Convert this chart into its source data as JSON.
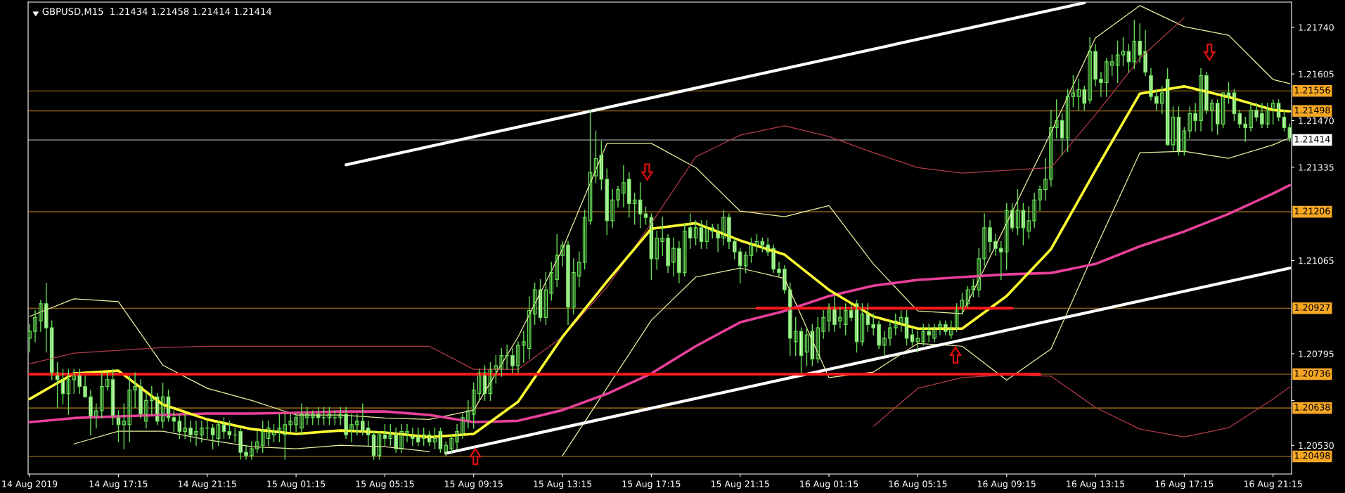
{
  "chart_data": {
    "type": "candlestick",
    "title": "GBPUSD,M15  1.21434 1.21458 1.21414 1.21414",
    "x": [
      "2019-08-14T13:15",
      "2019-08-14T13:30",
      "2019-08-14T13:45",
      "2019-08-14T14:00",
      "2019-08-14T14:15",
      "2019-08-14T14:30",
      "2019-08-14T14:45",
      "2019-08-14T15:00",
      "2019-08-14T15:15",
      "2019-08-14T15:30",
      "2019-08-14T15:45",
      "2019-08-14T16:00",
      "2019-08-14T16:15",
      "2019-08-14T16:30",
      "2019-08-14T16:45",
      "2019-08-14T17:00",
      "2019-08-14T17:15",
      "2019-08-14T17:30",
      "2019-08-14T17:45",
      "2019-08-14T18:00",
      "2019-08-14T18:15",
      "2019-08-14T18:30",
      "2019-08-14T18:45",
      "2019-08-14T19:00",
      "2019-08-14T19:15",
      "2019-08-14T19:30",
      "2019-08-14T19:45",
      "2019-08-14T20:00",
      "2019-08-14T20:15",
      "2019-08-14T20:30",
      "2019-08-14T20:45",
      "2019-08-14T21:00",
      "2019-08-14T21:15",
      "2019-08-14T21:30",
      "2019-08-14T21:45",
      "2019-08-14T22:00",
      "2019-08-14T22:15",
      "2019-08-14T22:30",
      "2019-08-14T22:45",
      "2019-08-14T23:00",
      "2019-08-14T23:15",
      "2019-08-14T23:30",
      "2019-08-14T23:45",
      "2019-08-15T00:00",
      "2019-08-15T00:15",
      "2019-08-15T00:30",
      "2019-08-15T00:45",
      "2019-08-15T01:00",
      "2019-08-15T01:15",
      "2019-08-15T01:30",
      "2019-08-15T01:45",
      "2019-08-15T02:00",
      "2019-08-15T02:15",
      "2019-08-15T02:30",
      "2019-08-15T02:45",
      "2019-08-15T03:00",
      "2019-08-15T03:15",
      "2019-08-15T03:30",
      "2019-08-15T03:45",
      "2019-08-15T04:00",
      "2019-08-15T04:15",
      "2019-08-15T04:30",
      "2019-08-15T04:45",
      "2019-08-15T05:00",
      "2019-08-15T05:15",
      "2019-08-15T05:30",
      "2019-08-15T05:45",
      "2019-08-15T06:00",
      "2019-08-15T06:15",
      "2019-08-15T06:30",
      "2019-08-15T06:45",
      "2019-08-15T07:00",
      "2019-08-15T07:15",
      "2019-08-15T07:30",
      "2019-08-15T07:45",
      "2019-08-15T08:00",
      "2019-08-15T08:15",
      "2019-08-15T08:30",
      "2019-08-15T08:45",
      "2019-08-15T09:00",
      "2019-08-15T09:15",
      "2019-08-15T09:30",
      "2019-08-15T09:45",
      "2019-08-15T10:00",
      "2019-08-15T10:15",
      "2019-08-15T10:30",
      "2019-08-15T10:45",
      "2019-08-15T11:00",
      "2019-08-15T11:15",
      "2019-08-15T11:30",
      "2019-08-15T11:45",
      "2019-08-15T12:00",
      "2019-08-15T12:15",
      "2019-08-15T12:30",
      "2019-08-15T12:45",
      "2019-08-15T13:00",
      "2019-08-15T13:15",
      "2019-08-15T13:30",
      "2019-08-15T13:45",
      "2019-08-15T14:00",
      "2019-08-15T14:15",
      "2019-08-15T14:30",
      "2019-08-15T14:45",
      "2019-08-15T15:00",
      "2019-08-15T15:15",
      "2019-08-15T15:30",
      "2019-08-15T15:45",
      "2019-08-15T16:00",
      "2019-08-15T16:15",
      "2019-08-15T16:30",
      "2019-08-15T16:45",
      "2019-08-15T17:00",
      "2019-08-15T17:15",
      "2019-08-15T17:30",
      "2019-08-15T17:45",
      "2019-08-15T18:00",
      "2019-08-15T18:15",
      "2019-08-15T18:30",
      "2019-08-15T18:45",
      "2019-08-15T19:00",
      "2019-08-15T19:15",
      "2019-08-15T19:30",
      "2019-08-15T19:45",
      "2019-08-15T20:00",
      "2019-08-15T20:15",
      "2019-08-15T20:30",
      "2019-08-15T20:45",
      "2019-08-15T21:00",
      "2019-08-15T21:15",
      "2019-08-15T21:30",
      "2019-08-15T21:45",
      "2019-08-15T22:00",
      "2019-08-15T22:15",
      "2019-08-15T22:30",
      "2019-08-15T22:45",
      "2019-08-15T23:00",
      "2019-08-15T23:15",
      "2019-08-15T23:30",
      "2019-08-15T23:45",
      "2019-08-16T00:00",
      "2019-08-16T00:15",
      "2019-08-16T00:30",
      "2019-08-16T00:45",
      "2019-08-16T01:00",
      "2019-08-16T01:15",
      "2019-08-16T01:30",
      "2019-08-16T01:45",
      "2019-08-16T02:00",
      "2019-08-16T02:15",
      "2019-08-16T02:30",
      "2019-08-16T02:45",
      "2019-08-16T03:00",
      "2019-08-16T03:15",
      "2019-08-16T03:30",
      "2019-08-16T03:45",
      "2019-08-16T04:00",
      "2019-08-16T04:15",
      "2019-08-16T04:30",
      "2019-08-16T04:45",
      "2019-08-16T05:00",
      "2019-08-16T05:15",
      "2019-08-16T05:30",
      "2019-08-16T05:45",
      "2019-08-16T06:00",
      "2019-08-16T06:15",
      "2019-08-16T06:30",
      "2019-08-16T06:45",
      "2019-08-16T07:00",
      "2019-08-16T07:15",
      "2019-08-16T07:30",
      "2019-08-16T07:45",
      "2019-08-16T08:00",
      "2019-08-16T08:15",
      "2019-08-16T08:30",
      "2019-08-16T08:45",
      "2019-08-16T09:00",
      "2019-08-16T09:15",
      "2019-08-16T09:30",
      "2019-08-16T09:45",
      "2019-08-16T10:00",
      "2019-08-16T10:15",
      "2019-08-16T10:30",
      "2019-08-16T10:45",
      "2019-08-16T11:00",
      "2019-08-16T11:15",
      "2019-08-16T11:30",
      "2019-08-16T11:45",
      "2019-08-16T12:00",
      "2019-08-16T12:15",
      "2019-08-16T12:30",
      "2019-08-16T12:45",
      "2019-08-16T13:00",
      "2019-08-16T13:15",
      "2019-08-16T13:30",
      "2019-08-16T13:45",
      "2019-08-16T14:00",
      "2019-08-16T14:15",
      "2019-08-16T14:30",
      "2019-08-16T14:45",
      "2019-08-16T15:00",
      "2019-08-16T15:15",
      "2019-08-16T15:30",
      "2019-08-16T15:45",
      "2019-08-16T16:00",
      "2019-08-16T16:15",
      "2019-08-16T16:30",
      "2019-08-16T16:45",
      "2019-08-16T17:00",
      "2019-08-16T17:15",
      "2019-08-16T17:30",
      "2019-08-16T17:45",
      "2019-08-16T18:00",
      "2019-08-16T18:15",
      "2019-08-16T18:30",
      "2019-08-16T18:45",
      "2019-08-16T19:00",
      "2019-08-16T19:15",
      "2019-08-16T19:30",
      "2019-08-16T19:45",
      "2019-08-16T20:00",
      "2019-08-16T20:15",
      "2019-08-16T20:30",
      "2019-08-16T20:45",
      "2019-08-16T21:00",
      "2019-08-16T21:15",
      "2019-08-16T21:30",
      "2019-08-16T21:45",
      "2019-08-16T22:00"
    ],
    "ohlc": [
      [
        1.2084,
        1.2088,
        1.208,
        1.2086
      ],
      [
        1.2086,
        1.2092,
        1.2083,
        1.209
      ],
      [
        1.2089,
        1.2095,
        1.2086,
        1.2094
      ],
      [
        1.2094,
        1.21,
        1.208,
        1.2087
      ],
      [
        1.2087,
        1.2089,
        1.2072,
        1.2074
      ],
      [
        1.2074,
        1.2077,
        1.2064,
        1.2072
      ],
      [
        1.2072,
        1.2075,
        1.2065,
        1.2068
      ],
      [
        1.2068,
        1.2075,
        1.2062,
        1.2072
      ],
      [
        1.2072,
        1.2075,
        1.2068,
        1.2074
      ],
      [
        1.2074,
        1.2075,
        1.2068,
        1.207
      ],
      [
        1.207,
        1.2073,
        1.2067,
        1.2067
      ],
      [
        1.2067,
        1.2069,
        1.2056,
        1.2061
      ],
      [
        1.2061,
        1.2065,
        1.2058,
        1.2063
      ],
      [
        1.2063,
        1.2074,
        1.2061,
        1.207
      ],
      [
        1.207,
        1.2074,
        1.2069,
        1.2072
      ],
      [
        1.2072,
        1.2075,
        1.2059,
        1.2061
      ],
      [
        1.2061,
        1.2063,
        1.2054,
        1.2059
      ],
      [
        1.2059,
        1.2065,
        1.2052,
        1.206
      ],
      [
        1.2059,
        1.2073,
        1.2054,
        1.2069
      ],
      [
        1.2069,
        1.2074,
        1.2064,
        1.207
      ],
      [
        1.207,
        1.2072,
        1.2061,
        1.2062
      ],
      [
        1.206,
        1.2068,
        1.2058,
        1.2066
      ],
      [
        1.2066,
        1.207,
        1.2062,
        1.2067
      ],
      [
        1.2067,
        1.2068,
        1.2059,
        1.206
      ],
      [
        1.206,
        1.2071,
        1.2058,
        1.2067
      ],
      [
        1.2067,
        1.2069,
        1.206,
        1.2061
      ],
      [
        1.2061,
        1.2063,
        1.2057,
        1.206
      ],
      [
        1.206,
        1.2062,
        1.2055,
        1.2057
      ],
      [
        1.2057,
        1.2062,
        1.2055,
        1.2058
      ],
      [
        1.2058,
        1.206,
        1.2054,
        1.2056
      ],
      [
        1.2056,
        1.206,
        1.2053,
        1.2057
      ],
      [
        1.2056,
        1.206,
        1.2054,
        1.2058
      ],
      [
        1.2058,
        1.206,
        1.2055,
        1.2058
      ],
      [
        1.2058,
        1.2059,
        1.2052,
        1.2056
      ],
      [
        1.2055,
        1.206,
        1.2053,
        1.2059
      ],
      [
        1.2059,
        1.2061,
        1.2055,
        1.2057
      ],
      [
        1.2057,
        1.206,
        1.2055,
        1.2056
      ],
      [
        1.2056,
        1.2058,
        1.2054,
        1.2056
      ],
      [
        1.2057,
        1.2058,
        1.2049,
        1.2051
      ],
      [
        1.2051,
        1.2053,
        1.2049,
        1.205
      ],
      [
        1.205,
        1.2054,
        1.2049,
        1.2052
      ],
      [
        1.2052,
        1.2057,
        1.2051,
        1.2054
      ],
      [
        1.2053,
        1.206,
        1.2051,
        1.2057
      ],
      [
        1.2055,
        1.206,
        1.2053,
        1.2058
      ],
      [
        1.2056,
        1.2059,
        1.2054,
        1.2057
      ],
      [
        1.2057,
        1.2062,
        1.2054,
        1.2058
      ],
      [
        1.2056,
        1.2062,
        1.2049,
        1.2059
      ],
      [
        1.2059,
        1.2062,
        1.2057,
        1.206
      ],
      [
        1.2059,
        1.2062,
        1.2057,
        1.2061
      ],
      [
        1.2058,
        1.2065,
        1.2056,
        1.2062
      ],
      [
        1.2061,
        1.2064,
        1.2059,
        1.2062
      ],
      [
        1.2061,
        1.2063,
        1.2059,
        1.2062
      ],
      [
        1.2062,
        1.2064,
        1.2059,
        1.2061
      ],
      [
        1.2061,
        1.2064,
        1.2059,
        1.2061
      ],
      [
        1.2061,
        1.2064,
        1.2059,
        1.2062
      ],
      [
        1.2061,
        1.2063,
        1.2059,
        1.2061
      ],
      [
        1.2061,
        1.2064,
        1.2059,
        1.2062
      ],
      [
        1.2062,
        1.2064,
        1.2055,
        1.2056
      ],
      [
        1.2057,
        1.2062,
        1.2054,
        1.2059
      ],
      [
        1.2059,
        1.2062,
        1.2056,
        1.206
      ],
      [
        1.206,
        1.2065,
        1.2056,
        1.2057
      ],
      [
        1.2058,
        1.206,
        1.2053,
        1.2056
      ],
      [
        1.2056,
        1.2057,
        1.2049,
        1.205
      ],
      [
        1.205,
        1.2057,
        1.2049,
        1.2056
      ],
      [
        1.2056,
        1.2059,
        1.2053,
        1.2055
      ],
      [
        1.2055,
        1.2059,
        1.2053,
        1.2056
      ],
      [
        1.2056,
        1.2058,
        1.2051,
        1.2052
      ],
      [
        1.2052,
        1.2059,
        1.2051,
        1.2057
      ],
      [
        1.2056,
        1.2059,
        1.2054,
        1.2057
      ],
      [
        1.2056,
        1.2058,
        1.2053,
        1.2055
      ],
      [
        1.2056,
        1.2058,
        1.2053,
        1.2054
      ],
      [
        1.2055,
        1.2058,
        1.2053,
        1.2056
      ],
      [
        1.2056,
        1.2057,
        1.2053,
        1.2054
      ],
      [
        1.2054,
        1.2058,
        1.2052,
        1.2055
      ],
      [
        1.2057,
        1.2058,
        1.2051,
        1.2052
      ],
      [
        1.2051,
        1.2054,
        1.205,
        1.2053
      ],
      [
        1.2052,
        1.2056,
        1.2051,
        1.2055
      ],
      [
        1.2054,
        1.2059,
        1.2052,
        1.2057
      ],
      [
        1.2056,
        1.2062,
        1.2055,
        1.2061
      ],
      [
        1.206,
        1.2066,
        1.2058,
        1.2063
      ],
      [
        1.2062,
        1.2071,
        1.2058,
        1.2069
      ],
      [
        1.2068,
        1.2075,
        1.2066,
        1.2074
      ],
      [
        1.2074,
        1.2076,
        1.2066,
        1.2068
      ],
      [
        1.2068,
        1.2077,
        1.2066,
        1.2075
      ],
      [
        1.2075,
        1.2079,
        1.2071,
        1.2076
      ],
      [
        1.2075,
        1.2081,
        1.2073,
        1.2079
      ],
      [
        1.2079,
        1.2082,
        1.2075,
        1.2079
      ],
      [
        1.2079,
        1.2081,
        1.2074,
        1.2076
      ],
      [
        1.2076,
        1.2083,
        1.2074,
        1.2082
      ],
      [
        1.2082,
        1.2086,
        1.2077,
        1.2083
      ],
      [
        1.2081,
        1.2096,
        1.2078,
        1.2092
      ],
      [
        1.2091,
        1.21,
        1.2088,
        1.2098
      ],
      [
        1.2098,
        1.2101,
        1.2089,
        1.209
      ],
      [
        1.209,
        1.2103,
        1.2088,
        1.2098
      ],
      [
        1.2097,
        1.2106,
        1.2095,
        1.2103
      ],
      [
        1.2101,
        1.2114,
        1.2099,
        1.2108
      ],
      [
        1.2108,
        1.2112,
        1.2105,
        1.2111
      ],
      [
        1.2111,
        1.2112,
        1.2088,
        1.2093
      ],
      [
        1.2093,
        1.2107,
        1.2091,
        1.2103
      ],
      [
        1.2102,
        1.2109,
        1.2099,
        1.2106
      ],
      [
        1.2106,
        1.2121,
        1.2104,
        1.2119
      ],
      [
        1.2118,
        1.215,
        1.2117,
        1.2132
      ],
      [
        1.2131,
        1.2144,
        1.2129,
        1.2136
      ],
      [
        1.2137,
        1.2141,
        1.2127,
        1.213
      ],
      [
        1.213,
        1.2133,
        1.2114,
        1.2118
      ],
      [
        1.2118,
        1.2127,
        1.2116,
        1.2124
      ],
      [
        1.2124,
        1.2128,
        1.2122,
        1.2127
      ],
      [
        1.2126,
        1.2134,
        1.2122,
        1.2129
      ],
      [
        1.213,
        1.2132,
        1.2119,
        1.2123
      ],
      [
        1.2123,
        1.2126,
        1.2117,
        1.2124
      ],
      [
        1.2124,
        1.2129,
        1.2116,
        1.212
      ],
      [
        1.212,
        1.2122,
        1.2117,
        1.2119
      ],
      [
        1.2119,
        1.212,
        1.2101,
        1.2107
      ],
      [
        1.2107,
        1.2115,
        1.2104,
        1.2113
      ],
      [
        1.2112,
        1.2119,
        1.2108,
        1.2113
      ],
      [
        1.2113,
        1.2114,
        1.2103,
        1.2105
      ],
      [
        1.2106,
        1.2113,
        1.2102,
        1.211
      ],
      [
        1.211,
        1.2112,
        1.21,
        1.2103
      ],
      [
        1.2103,
        1.2117,
        1.2102,
        1.2115
      ],
      [
        1.2116,
        1.212,
        1.211,
        1.2113
      ],
      [
        1.2113,
        1.2118,
        1.2111,
        1.2116
      ],
      [
        1.2116,
        1.2118,
        1.211,
        1.2112
      ],
      [
        1.2112,
        1.2118,
        1.211,
        1.2116
      ],
      [
        1.2116,
        1.2117,
        1.2113,
        1.2115
      ],
      [
        1.2115,
        1.2117,
        1.2109,
        1.2113
      ],
      [
        1.2113,
        1.2121,
        1.2111,
        1.2119
      ],
      [
        1.2119,
        1.212,
        1.211,
        1.2112
      ],
      [
        1.2112,
        1.2113,
        1.2107,
        1.2109
      ],
      [
        1.2109,
        1.211,
        1.21,
        1.2105
      ],
      [
        1.2105,
        1.2109,
        1.2103,
        1.2108
      ],
      [
        1.2108,
        1.2113,
        1.2106,
        1.2111
      ],
      [
        1.2111,
        1.2114,
        1.2109,
        1.2112
      ],
      [
        1.2112,
        1.2113,
        1.2109,
        1.2111
      ],
      [
        1.2111,
        1.2113,
        1.2108,
        1.2109
      ],
      [
        1.211,
        1.2111,
        1.2103,
        1.2104
      ],
      [
        1.2104,
        1.2106,
        1.2102,
        1.2103
      ],
      [
        1.2104,
        1.2105,
        1.2097,
        1.2098
      ],
      [
        1.2098,
        1.21,
        1.2079,
        1.2084
      ],
      [
        1.2083,
        1.209,
        1.2079,
        1.2086
      ],
      [
        1.2086,
        1.2087,
        1.2074,
        1.2079
      ],
      [
        1.208,
        1.2087,
        1.2076,
        1.2085
      ],
      [
        1.2086,
        1.2088,
        1.2076,
        1.2078
      ],
      [
        1.2078,
        1.209,
        1.2077,
        1.2087
      ],
      [
        1.2086,
        1.2092,
        1.2084,
        1.209
      ],
      [
        1.2089,
        1.2094,
        1.2086,
        1.2093
      ],
      [
        1.2093,
        1.2096,
        1.2086,
        1.2088
      ],
      [
        1.2089,
        1.2093,
        1.2087,
        1.209
      ],
      [
        1.2088,
        1.2094,
        1.2085,
        1.2092
      ],
      [
        1.2092,
        1.2094,
        1.2089,
        1.209
      ],
      [
        1.2094,
        1.2095,
        1.208,
        1.2083
      ],
      [
        1.2083,
        1.2094,
        1.2082,
        1.2091
      ],
      [
        1.2091,
        1.2094,
        1.2086,
        1.2088
      ],
      [
        1.2088,
        1.2091,
        1.2085,
        1.2087
      ],
      [
        1.2088,
        1.2089,
        1.2081,
        1.2082
      ],
      [
        1.2082,
        1.2086,
        1.2079,
        1.2084
      ],
      [
        1.2084,
        1.2089,
        1.2082,
        1.2087
      ],
      [
        1.2087,
        1.2091,
        1.2085,
        1.2089
      ],
      [
        1.2088,
        1.2092,
        1.2086,
        1.209
      ],
      [
        1.209,
        1.2092,
        1.2082,
        1.2084
      ],
      [
        1.2085,
        1.2087,
        1.2082,
        1.2083
      ],
      [
        1.2083,
        1.2086,
        1.208,
        1.2084
      ],
      [
        1.2083,
        1.2088,
        1.2082,
        1.2086
      ],
      [
        1.2086,
        1.2088,
        1.2083,
        1.2085
      ],
      [
        1.2084,
        1.2088,
        1.2083,
        1.2087
      ],
      [
        1.2087,
        1.2089,
        1.2085,
        1.2088
      ],
      [
        1.2088,
        1.2089,
        1.2085,
        1.2086
      ],
      [
        1.2085,
        1.2089,
        1.2084,
        1.2087
      ],
      [
        1.2087,
        1.2094,
        1.2086,
        1.2093
      ],
      [
        1.2093,
        1.2097,
        1.2091,
        1.2095
      ],
      [
        1.2094,
        1.2099,
        1.2093,
        1.2098
      ],
      [
        1.2098,
        1.2101,
        1.2096,
        1.2099
      ],
      [
        1.2098,
        1.211,
        1.2096,
        1.2107
      ],
      [
        1.2107,
        1.212,
        1.2105,
        1.2116
      ],
      [
        1.2116,
        1.2118,
        1.2109,
        1.2112
      ],
      [
        1.2112,
        1.2114,
        1.2108,
        1.211
      ],
      [
        1.211,
        1.2112,
        1.2101,
        1.2109
      ],
      [
        1.2109,
        1.2123,
        1.2104,
        1.2121
      ],
      [
        1.2121,
        1.2123,
        1.2115,
        1.2116
      ],
      [
        1.2116,
        1.2127,
        1.2114,
        1.2121
      ],
      [
        1.2121,
        1.2123,
        1.2111,
        1.2116
      ],
      [
        1.2115,
        1.2122,
        1.2113,
        1.2118
      ],
      [
        1.2118,
        1.2126,
        1.2116,
        1.2124
      ],
      [
        1.2124,
        1.2128,
        1.2121,
        1.2127
      ],
      [
        1.2127,
        1.2136,
        1.2124,
        1.213
      ],
      [
        1.213,
        1.215,
        1.2128,
        1.2145
      ],
      [
        1.2145,
        1.2153,
        1.2142,
        1.2147
      ],
      [
        1.2147,
        1.2149,
        1.2137,
        1.2142
      ],
      [
        1.2142,
        1.2156,
        1.2138,
        1.2154
      ],
      [
        1.2154,
        1.216,
        1.2151,
        1.2155
      ],
      [
        1.2154,
        1.2159,
        1.215,
        1.2156
      ],
      [
        1.2156,
        1.2157,
        1.215,
        1.2152
      ],
      [
        1.2153,
        1.2171,
        1.2152,
        1.2167
      ],
      [
        1.2167,
        1.2169,
        1.2157,
        1.2159
      ],
      [
        1.2159,
        1.2161,
        1.2154,
        1.2158
      ],
      [
        1.2158,
        1.2165,
        1.2154,
        1.2164
      ],
      [
        1.2163,
        1.2166,
        1.216,
        1.2164
      ],
      [
        1.2163,
        1.217,
        1.2158,
        1.2166
      ],
      [
        1.2166,
        1.2171,
        1.2163,
        1.2167
      ],
      [
        1.2167,
        1.2169,
        1.2161,
        1.2164
      ],
      [
        1.2164,
        1.2176,
        1.2162,
        1.217
      ],
      [
        1.217,
        1.2175,
        1.2164,
        1.2166
      ],
      [
        1.2167,
        1.2173,
        1.216,
        1.2161
      ],
      [
        1.216,
        1.2162,
        1.2153,
        1.2154
      ],
      [
        1.2154,
        1.2156,
        1.215,
        1.2152
      ],
      [
        1.2152,
        1.2157,
        1.2149,
        1.2155
      ],
      [
        1.2159,
        1.2162,
        1.214,
        1.214
      ],
      [
        1.214,
        1.2151,
        1.2138,
        1.2148
      ],
      [
        1.2148,
        1.2151,
        1.2137,
        1.2138
      ],
      [
        1.2138,
        1.2145,
        1.2137,
        1.2144
      ],
      [
        1.2144,
        1.2151,
        1.2142,
        1.2149
      ],
      [
        1.2149,
        1.2152,
        1.2144,
        1.2147
      ],
      [
        1.2147,
        1.2162,
        1.2144,
        1.216
      ],
      [
        1.216,
        1.2161,
        1.2149,
        1.215
      ],
      [
        1.215,
        1.2153,
        1.2144,
        1.2152
      ],
      [
        1.2152,
        1.2153,
        1.2143,
        1.2146
      ],
      [
        1.2146,
        1.2155,
        1.2145,
        1.2155
      ],
      [
        1.2155,
        1.2158,
        1.2152,
        1.2154
      ],
      [
        1.2155,
        1.2156,
        1.2147,
        1.2149
      ],
      [
        1.2149,
        1.215,
        1.2145,
        1.2146
      ],
      [
        1.2146,
        1.2148,
        1.2141,
        1.2145
      ],
      [
        1.2145,
        1.2152,
        1.2144,
        1.215
      ],
      [
        1.215,
        1.2152,
        1.2147,
        1.2148
      ],
      [
        1.2149,
        1.2152,
        1.2145,
        1.2146
      ],
      [
        1.2146,
        1.2152,
        1.2145,
        1.215
      ],
      [
        1.215,
        1.2153,
        1.2146,
        1.2152
      ],
      [
        1.2152,
        1.2153,
        1.2147,
        1.2148
      ],
      [
        1.2148,
        1.215,
        1.2144,
        1.2145
      ],
      [
        1.2145,
        1.2146,
        1.2141,
        1.2142
      ]
    ],
    "series": [
      {
        "type": "line",
        "color": "#eeeea0",
        "x": [
          "2019-08-14T13:15",
          "2019-08-14T15:15",
          "2019-08-14T17:15",
          "2019-08-14T19:15",
          "2019-08-14T21:15",
          "2019-08-14T23:15",
          "2019-08-15T01:15",
          "2019-08-15T03:15",
          "2019-08-15T05:15",
          "2019-08-15T07:15",
          "2019-08-15T09:15",
          "2019-08-15T11:15",
          "2019-08-15T13:15",
          "2019-08-15T15:15",
          "2019-08-15T17:15",
          "2019-08-15T19:15",
          "2019-08-15T21:15",
          "2019-08-15T23:15",
          "2019-08-16T01:15",
          "2019-08-16T03:15",
          "2019-08-16T05:15",
          "2019-08-16T07:15",
          "2019-08-16T09:15",
          "2019-08-16T11:15",
          "2019-08-16T13:15",
          "2019-08-16T15:15",
          "2019-08-16T17:15",
          "2019-08-16T19:15",
          "2019-08-16T21:15",
          "2019-08-16T22:00"
        ],
        "values": [
          1.20903,
          1.20954,
          1.20946,
          1.20762,
          1.20695,
          1.2066,
          1.20618,
          1.20618,
          1.20609,
          1.20605,
          1.20632,
          1.20844,
          1.21098,
          1.21404,
          1.21404,
          1.21334,
          1.21208,
          1.21192,
          1.21224,
          1.21055,
          1.20919,
          1.20911,
          1.21173,
          1.21436,
          1.21709,
          1.21803,
          1.21742,
          1.21717,
          1.21589,
          1.21577
        ]
      },
      {
        "type": "line",
        "color": "#eeeea0",
        "x": [
          "2019-08-14T15:15",
          "2019-08-14T17:15",
          "2019-08-14T19:15",
          "2019-08-14T21:15",
          "2019-08-14T23:15",
          "2019-08-15T01:15",
          "2019-08-15T03:15",
          "2019-08-15T05:15",
          "2019-08-15T07:15",
          "2019-08-15T09:15",
          "2019-08-15T11:15",
          "2019-08-15T13:15",
          "2019-08-15T15:15",
          "2019-08-15T17:15",
          "2019-08-15T19:15",
          "2019-08-15T21:15",
          "2019-08-15T23:15",
          "2019-08-16T01:15",
          "2019-08-16T03:15",
          "2019-08-16T05:15",
          "2019-08-16T07:15",
          "2019-08-16T09:15",
          "2019-08-16T11:15",
          "2019-08-16T13:15",
          "2019-08-16T15:15",
          "2019-08-16T17:15",
          "2019-08-16T19:15",
          "2019-08-16T21:15",
          "2019-08-16T22:00"
        ],
        "values": [
          1.20534,
          1.20571,
          1.20571,
          1.20546,
          1.20526,
          1.2052,
          1.2053,
          1.20526,
          1.20512,
          null,
          null,
          1.205,
          1.20696,
          1.20892,
          1.21017,
          1.21043,
          1.21013,
          1.20726,
          1.20742,
          1.20825,
          1.20817,
          1.20719,
          1.20809,
          1.21098,
          1.21377,
          1.21381,
          1.21361,
          1.214,
          1.2142
        ]
      },
      {
        "type": "line",
        "color": "#b03a4a",
        "x": [
          "2019-08-14T13:15",
          "2019-08-14T15:15",
          "2019-08-14T17:15",
          "2019-08-14T19:15",
          "2019-08-14T21:15",
          "2019-08-14T23:15",
          "2019-08-15T01:15",
          "2019-08-15T03:15",
          "2019-08-15T05:15",
          "2019-08-15T07:15",
          "2019-08-15T09:15",
          "2019-08-15T11:15",
          "2019-08-15T13:15",
          "2019-08-15T15:15",
          "2019-08-15T17:15",
          "2019-08-15T19:15",
          "2019-08-15T21:15",
          "2019-08-15T23:15",
          "2019-08-16T01:15",
          "2019-08-16T03:15",
          "2019-08-16T05:15",
          "2019-08-16T07:15",
          "2019-08-16T09:15",
          "2019-08-16T11:15",
          "2019-08-16T13:15",
          "2019-08-16T15:15",
          "2019-08-16T17:15"
        ],
        "values": [
          1.20766,
          1.20797,
          1.20805,
          1.20813,
          1.20817,
          1.20817,
          1.20817,
          1.20817,
          1.20817,
          1.20817,
          1.2075,
          1.2075,
          1.20844,
          1.20988,
          1.21173,
          1.21365,
          1.21428,
          1.21455,
          1.21424,
          1.21377,
          1.21334,
          1.21318,
          1.21326,
          1.21334,
          1.21487,
          1.2165,
          1.21768
        ]
      },
      {
        "type": "line",
        "color": "#b03a4a",
        "x": [
          "2019-08-16T03:15",
          "2019-08-16T05:15",
          "2019-08-16T07:15",
          "2019-08-16T09:15",
          "2019-08-16T11:15",
          "2019-08-16T13:15",
          "2019-08-16T15:15",
          "2019-08-16T17:15",
          "2019-08-16T19:15",
          "2019-08-16T21:15",
          "2019-08-16T22:00"
        ],
        "values": [
          1.20585,
          1.20695,
          1.20726,
          1.20734,
          1.2073,
          1.2064,
          1.20577,
          1.20554,
          1.20581,
          1.20664,
          1.20699
        ]
      },
      {
        "type": "line",
        "color": "#e8409a",
        "x": [
          "2019-08-14T13:15",
          "2019-08-14T15:15",
          "2019-08-14T17:15",
          "2019-08-14T19:15",
          "2019-08-14T21:15",
          "2019-08-14T23:15",
          "2019-08-15T01:15",
          "2019-08-15T03:15",
          "2019-08-15T05:15",
          "2019-08-15T07:15",
          "2019-08-15T09:15",
          "2019-08-15T11:15",
          "2019-08-15T13:15",
          "2019-08-15T15:15",
          "2019-08-15T17:15",
          "2019-08-15T19:15",
          "2019-08-15T21:15",
          "2019-08-15T23:15",
          "2019-08-16T01:15",
          "2019-08-16T03:15",
          "2019-08-16T05:15",
          "2019-08-16T07:15",
          "2019-08-16T09:15",
          "2019-08-16T11:15",
          "2019-08-16T13:15",
          "2019-08-16T15:15",
          "2019-08-16T17:15",
          "2019-08-16T19:15",
          "2019-08-16T21:15",
          "2019-08-16T22:00"
        ],
        "values": [
          1.20597,
          1.20609,
          1.20614,
          1.20618,
          1.20622,
          1.20622,
          1.20624,
          1.20628,
          1.20628,
          1.20618,
          1.20597,
          1.20601,
          1.20632,
          1.20679,
          1.20738,
          1.20817,
          1.20886,
          1.20919,
          1.20962,
          1.20992,
          1.21009,
          1.21017,
          1.21025,
          1.21029,
          1.21055,
          1.21106,
          1.21149,
          1.212,
          1.21259,
          1.21283
        ]
      },
      {
        "type": "line",
        "color": "#ffff33",
        "x": [
          "2019-08-14T13:15",
          "2019-08-14T15:15",
          "2019-08-14T17:15",
          "2019-08-14T19:15",
          "2019-08-14T21:15",
          "2019-08-14T23:15",
          "2019-08-15T01:15",
          "2019-08-15T03:15",
          "2019-08-15T05:15",
          "2019-08-15T07:15",
          "2019-08-15T09:15",
          "2019-08-15T11:15",
          "2019-08-15T13:15",
          "2019-08-15T15:15",
          "2019-08-15T17:15",
          "2019-08-15T19:15",
          "2019-08-15T21:15",
          "2019-08-15T23:15",
          "2019-08-16T01:15",
          "2019-08-16T03:15",
          "2019-08-16T05:15",
          "2019-08-16T07:15",
          "2019-08-16T09:15",
          "2019-08-16T11:15",
          "2019-08-16T13:15",
          "2019-08-16T15:15",
          "2019-08-16T17:15",
          "2019-08-16T19:15",
          "2019-08-16T21:15",
          "2019-08-16T22:00"
        ],
        "values": [
          1.20664,
          1.20738,
          1.20746,
          1.20648,
          1.20605,
          1.20577,
          1.20563,
          1.20573,
          1.20567,
          1.20554,
          1.20563,
          1.20656,
          1.20844,
          1.21004,
          1.21157,
          1.21173,
          1.21123,
          1.21082,
          1.2098,
          1.20903,
          1.20868,
          1.20868,
          1.20962,
          1.21098,
          1.21326,
          1.21548,
          1.21569,
          1.21538,
          1.21501,
          1.21497
        ]
      },
      {
        "type": "line",
        "color": "#ffffff",
        "x": [
          "2019-08-15T03:30",
          "2019-08-16T12:45"
        ],
        "values": [
          1.21342,
          1.21811
        ]
      },
      {
        "type": "line",
        "color": "#ffffff",
        "x": [
          "2019-08-15T08:00",
          "2019-08-16T22:00"
        ],
        "values": [
          1.20507,
          1.21043
        ]
      },
      {
        "type": "line",
        "color": "#ff1a1a",
        "x": [
          "2019-08-14T13:15",
          "2019-08-16T10:45"
        ],
        "values": [
          1.20736,
          1.20736
        ]
      },
      {
        "type": "line",
        "color": "#ff1a1a",
        "x": [
          "2019-08-15T22:00",
          "2019-08-16T09:30"
        ],
        "values": [
          1.20927,
          1.20927
        ]
      }
    ],
    "ref_lines": [
      {
        "axis": "y",
        "value": 1.21556,
        "label": "1.21556",
        "color": "#f5a623"
      },
      {
        "axis": "y",
        "value": 1.21498,
        "label": "1.21498",
        "color": "#f5a623"
      },
      {
        "axis": "y",
        "value": 1.21414,
        "label": "1.21414",
        "color": "#ffffff"
      },
      {
        "axis": "y",
        "value": 1.21206,
        "label": "1.21206",
        "color": "#f5a623"
      },
      {
        "axis": "y",
        "value": 1.20927,
        "label": "1.20927",
        "color": "#f5a623"
      },
      {
        "axis": "y",
        "value": 1.20736,
        "label": "1.20736",
        "color": "#f5a623"
      },
      {
        "axis": "y",
        "value": 1.20638,
        "label": "1.20638",
        "color": "#f5a623"
      },
      {
        "axis": "y",
        "value": 1.20498,
        "label": "1.20498",
        "color": "#f5a623"
      }
    ],
    "xlim": [
      "2019-08-14T13:11",
      "2019-08-16T22:05"
    ],
    "ylim": [
      1.20447,
      1.21813
    ],
    "xticks": [
      {
        "value": "2019-08-14T13:15",
        "label": "14 Aug 2019"
      },
      {
        "value": "2019-08-14T17:15",
        "label": "14 Aug 17:15"
      },
      {
        "value": "2019-08-14T21:15",
        "label": "14 Aug 21:15"
      },
      {
        "value": "2019-08-15T01:15",
        "label": "15 Aug 01:15"
      },
      {
        "value": "2019-08-15T05:15",
        "label": "15 Aug 05:15"
      },
      {
        "value": "2019-08-15T09:15",
        "label": "15 Aug 09:15"
      },
      {
        "value": "2019-08-15T13:15",
        "label": "15 Aug 13:15"
      },
      {
        "value": "2019-08-15T17:15",
        "label": "15 Aug 17:15"
      },
      {
        "value": "2019-08-15T21:15",
        "label": "15 Aug 21:15"
      },
      {
        "value": "2019-08-16T01:15",
        "label": "16 Aug 01:15"
      },
      {
        "value": "2019-08-16T05:15",
        "label": "16 Aug 05:15"
      },
      {
        "value": "2019-08-16T09:15",
        "label": "16 Aug 09:15"
      },
      {
        "value": "2019-08-16T13:15",
        "label": "16 Aug 13:15"
      },
      {
        "value": "2019-08-16T17:15",
        "label": "16 Aug 17:15"
      },
      {
        "value": "2019-08-16T21:15",
        "label": "16 Aug 21:15"
      }
    ],
    "yticks": [
      {
        "value": 1.2053,
        "label": "1.20530"
      },
      {
        "value": 1.2066,
        "label": null
      },
      {
        "value": 1.20795,
        "label": "1.20795"
      },
      {
        "value": 1.21065,
        "label": "1.21065"
      },
      {
        "value": 1.21335,
        "label": "1.21335"
      },
      {
        "value": 1.2147,
        "label": "1.21470"
      },
      {
        "value": 1.21605,
        "label": "1.21605"
      },
      {
        "value": 1.2174,
        "label": "1.21740"
      }
    ]
  }
}
